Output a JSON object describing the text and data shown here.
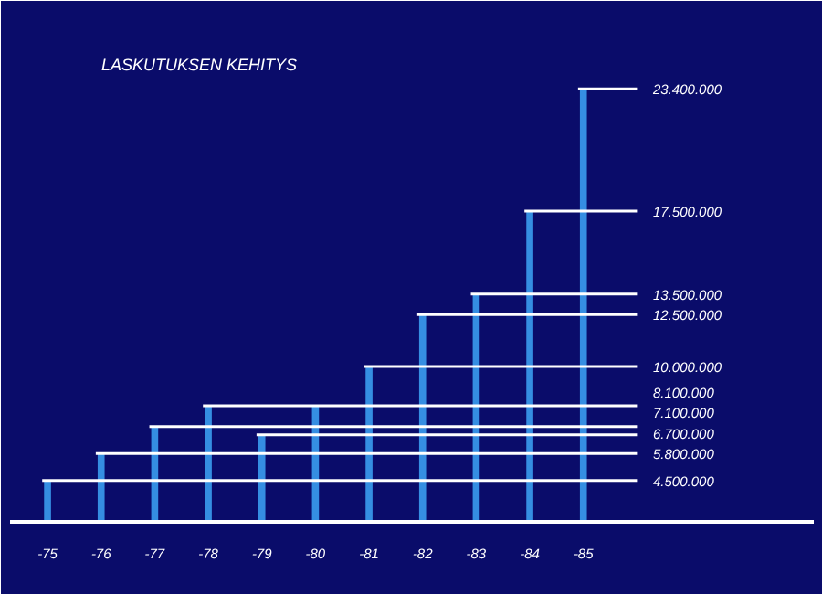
{
  "chart_data": {
    "type": "bar",
    "title": "LASKUTUKSEN KEHITYS",
    "categories": [
      "-75",
      "-76",
      "-77",
      "-78",
      "-79",
      "-80",
      "-81",
      "-82",
      "-83",
      "-84",
      "-85"
    ],
    "values": [
      4500000,
      5800000,
      7100000,
      8100000,
      6700000,
      8100000,
      10000000,
      12500000,
      13500000,
      17500000,
      23400000
    ],
    "value_labels": [
      "4.500.000",
      "5.800.000",
      "7.100.000",
      "8.100.000",
      "6.700.000",
      null,
      "10.000.000",
      "12.500.000",
      "13.500.000",
      "17.500.000",
      "23.400.000"
    ],
    "color": "#3a9cf0",
    "ylim": [
      2500000,
      25000000
    ],
    "grid": false
  }
}
